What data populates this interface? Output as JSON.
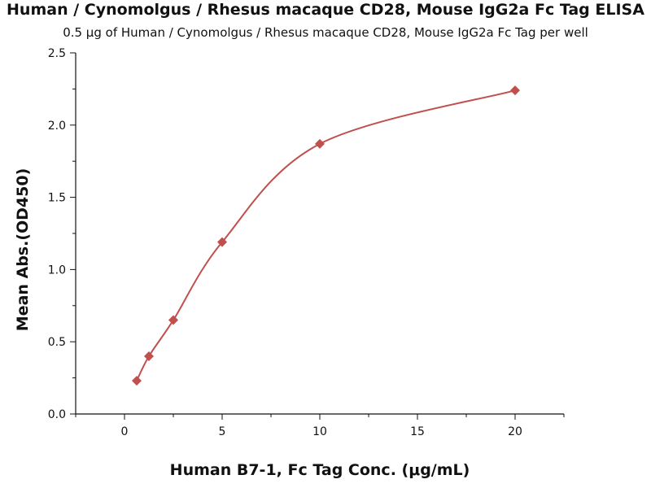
{
  "chart_data": {
    "type": "scatter",
    "title": "Human / Cynomolgus / Rhesus macaque CD28, Mouse IgG2a Fc Tag ELISA",
    "subtitle": "0.5 μg of Human / Cynomolgus / Rhesus macaque CD28, Mouse IgG2a Fc Tag per well",
    "xlabel": "Human B7-1, Fc Tag Conc. (μg/mL)",
    "ylabel": "Mean Abs.(OD450)",
    "xlim": [
      -2.5,
      22.5
    ],
    "ylim": [
      0,
      2.5
    ],
    "xticks": [
      "0",
      "5",
      "10",
      "15",
      "20"
    ],
    "xtick_values": [
      0,
      5,
      10,
      15,
      20
    ],
    "yticks": [
      "0.0",
      "0.5",
      "1.0",
      "1.5",
      "2.0",
      "2.5"
    ],
    "ytick_values": [
      0,
      0.5,
      1.0,
      1.5,
      2.0,
      2.5
    ],
    "grid": false,
    "marker": "diamond",
    "color": "#c0504d",
    "series": [
      {
        "x": [
          0.625,
          1.25,
          2.5,
          5,
          10,
          20
        ],
        "y": [
          0.23,
          0.4,
          0.65,
          1.19,
          1.87,
          2.24
        ],
        "fit": "4PL curve"
      }
    ]
  }
}
